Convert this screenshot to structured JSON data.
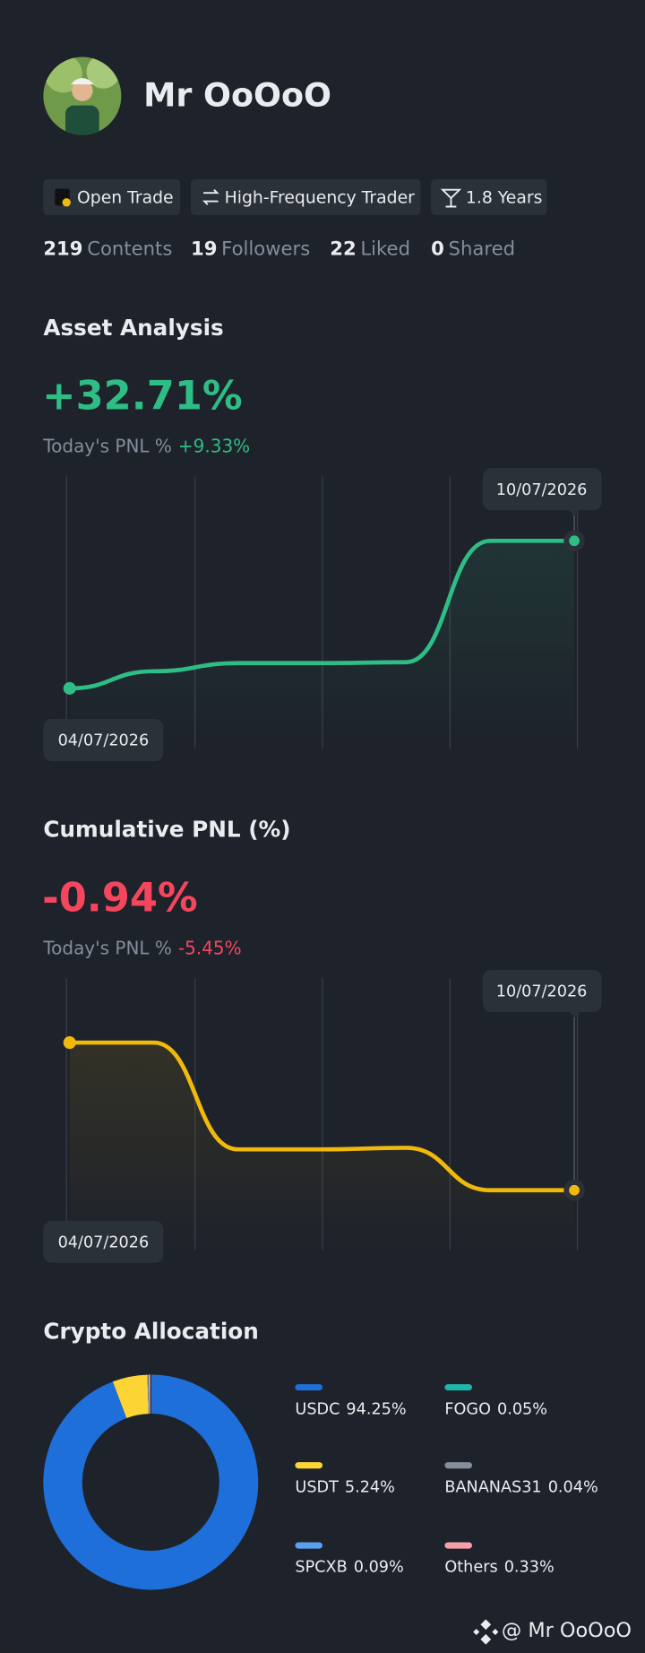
{
  "profile": {
    "name": "Mr OoOoO",
    "tags": [
      "Open Trade",
      "High-Frequency Trader",
      "1.8 Years"
    ],
    "stats": [
      {
        "count": "219",
        "label": "Contents"
      },
      {
        "count": "19",
        "label": "Followers"
      },
      {
        "count": "22",
        "label": "Liked"
      },
      {
        "count": "0",
        "label": "Shared"
      }
    ]
  },
  "asset_analysis": {
    "title": "Asset Analysis",
    "headline": "+32.71%",
    "today_label": "Today's PNL %",
    "today_value": "+9.33%",
    "start_date": "04/07/2026",
    "end_date": "10/07/2026",
    "color": "#2ebd85",
    "values": [
      0,
      3.8,
      5.6,
      5.6,
      5.8,
      32.71,
      32.71
    ]
  },
  "cumulative_pnl": {
    "title": "Cumulative PNL (%)",
    "headline": "-0.94%",
    "today_label": "Today's PNL %",
    "today_value": "-5.45%",
    "start_date": "04/07/2026",
    "end_date": "10/07/2026",
    "color": "#f0b90b",
    "values": [
      0,
      0,
      -0.68,
      -0.68,
      -0.67,
      -0.94,
      -0.94
    ]
  },
  "allocation": {
    "title": "Crypto Allocation",
    "items": [
      {
        "name": "USDC",
        "value": 94.25,
        "value_label": "94.25%",
        "color": "#1e6fd9"
      },
      {
        "name": "USDT",
        "value": 5.24,
        "value_label": "5.24%",
        "color": "#fcd535"
      },
      {
        "name": "SPCXB",
        "value": 0.09,
        "value_label": "0.09%",
        "color": "#5aa0f0"
      },
      {
        "name": "FOGO",
        "value": 0.05,
        "value_label": "0.05%",
        "color": "#1fb5ad"
      },
      {
        "name": "BANANAS31",
        "value": 0.04,
        "value_label": "0.04%",
        "color": "#848e9c"
      },
      {
        "name": "Others",
        "value": 0.33,
        "value_label": "0.33%",
        "color": "#f6a0a8"
      }
    ]
  },
  "footer": "@ Mr OoOoO"
}
